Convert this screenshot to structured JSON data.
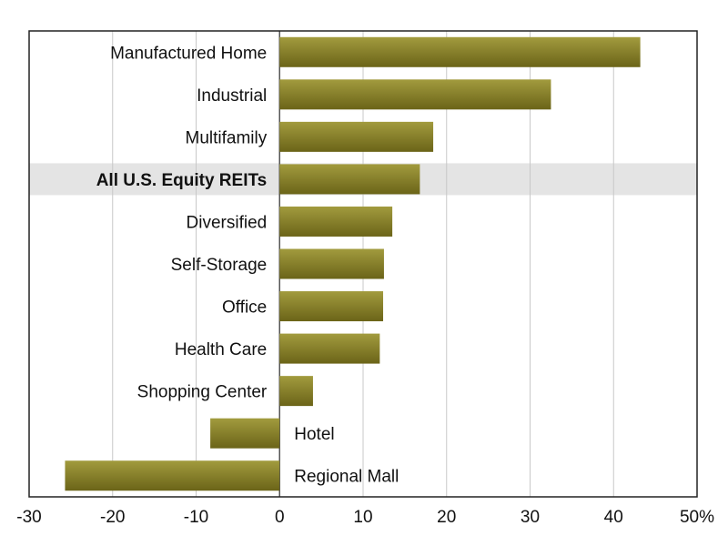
{
  "chart_data": {
    "type": "bar",
    "orientation": "horizontal",
    "categories": [
      "Manufactured Home",
      "Industrial",
      "Multifamily",
      "All U.S. Equity REITs",
      "Diversified",
      "Self-Storage",
      "Office",
      "Health Care",
      "Shopping Center",
      "Hotel",
      "Regional Mall"
    ],
    "values": [
      43.2,
      32.5,
      18.4,
      16.8,
      13.5,
      12.5,
      12.4,
      12.0,
      4.0,
      -8.3,
      -25.7
    ],
    "highlight_category": "All U.S. Equity REITs",
    "xlim": [
      -30,
      50
    ],
    "xticks": [
      -30,
      -20,
      -10,
      0,
      10,
      20,
      30,
      40,
      50
    ],
    "xtick_labels": [
      "-30",
      "-20",
      "-10",
      "0",
      "10",
      "20",
      "30",
      "40",
      "50%"
    ],
    "grid": "vertical",
    "colors": {
      "bar_top": "#a29b3e",
      "bar_bottom": "#6b6418",
      "highlight_band": "#e4e4e4"
    }
  }
}
